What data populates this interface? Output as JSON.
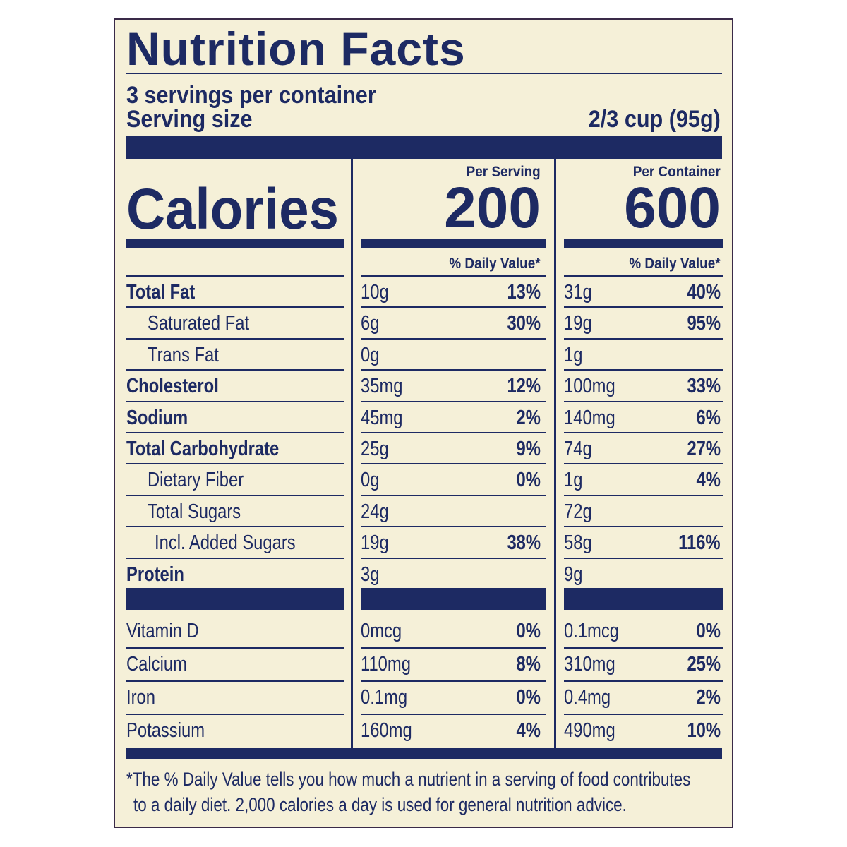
{
  "title": "Nutrition Facts",
  "servings_per_container": "3 servings per container",
  "serving_size_label": "Serving size",
  "serving_size_value": "2/3 cup (95g)",
  "calories_label": "Calories",
  "per_serving": {
    "header": "Per Serving",
    "calories": "200",
    "dv_header": "% Daily Value*"
  },
  "per_container": {
    "header": "Per Container",
    "calories": "600",
    "dv_header": "% Daily Value*"
  },
  "nutrients": [
    {
      "name": "Total Fat",
      "bold": true,
      "indent": 0,
      "serving_amount": "10g",
      "serving_dv": "13%",
      "container_amount": "31g",
      "container_dv": "40%"
    },
    {
      "name": "Saturated Fat",
      "bold": false,
      "indent": 1,
      "serving_amount": "6g",
      "serving_dv": "30%",
      "container_amount": "19g",
      "container_dv": "95%"
    },
    {
      "name": "Trans Fat",
      "bold": false,
      "indent": 1,
      "serving_amount": "0g",
      "serving_dv": "",
      "container_amount": "1g",
      "container_dv": ""
    },
    {
      "name": "Cholesterol",
      "bold": true,
      "indent": 0,
      "serving_amount": "35mg",
      "serving_dv": "12%",
      "container_amount": "100mg",
      "container_dv": "33%"
    },
    {
      "name": "Sodium",
      "bold": true,
      "indent": 0,
      "serving_amount": "45mg",
      "serving_dv": "2%",
      "container_amount": "140mg",
      "container_dv": "6%"
    },
    {
      "name": "Total Carbohydrate",
      "bold": true,
      "indent": 0,
      "serving_amount": "25g",
      "serving_dv": "9%",
      "container_amount": "74g",
      "container_dv": "27%"
    },
    {
      "name": "Dietary Fiber",
      "bold": false,
      "indent": 1,
      "serving_amount": "0g",
      "serving_dv": "0%",
      "container_amount": "1g",
      "container_dv": "4%"
    },
    {
      "name": "Total Sugars",
      "bold": false,
      "indent": 1,
      "serving_amount": "24g",
      "serving_dv": "",
      "container_amount": "72g",
      "container_dv": ""
    },
    {
      "name": "Incl. Added Sugars",
      "bold": false,
      "indent": 2,
      "serving_amount": "19g",
      "serving_dv": "38%",
      "container_amount": "58g",
      "container_dv": "116%"
    },
    {
      "name": "Protein",
      "bold": true,
      "indent": 0,
      "serving_amount": "3g",
      "serving_dv": "",
      "container_amount": "9g",
      "container_dv": ""
    }
  ],
  "vitamins": [
    {
      "name": "Vitamin D",
      "serving_amount": "0mcg",
      "serving_dv": "0%",
      "container_amount": "0.1mcg",
      "container_dv": "0%"
    },
    {
      "name": "Calcium",
      "serving_amount": "110mg",
      "serving_dv": "8%",
      "container_amount": "310mg",
      "container_dv": "25%"
    },
    {
      "name": "Iron",
      "serving_amount": "0.1mg",
      "serving_dv": "0%",
      "container_amount": "0.4mg",
      "container_dv": "2%"
    },
    {
      "name": "Potassium",
      "serving_amount": "160mg",
      "serving_dv": "4%",
      "container_amount": "490mg",
      "container_dv": "10%"
    }
  ],
  "footnote": {
    "line1": "*The % Daily Value tells you how much a nutrient in a serving of food contributes",
    "line2": "to a daily diet. 2,000 calories a day is used for general nutrition advice."
  },
  "colors": {
    "ink": "#1d2a63",
    "paper": "#f5f0d8",
    "border": "#3a2a48"
  }
}
